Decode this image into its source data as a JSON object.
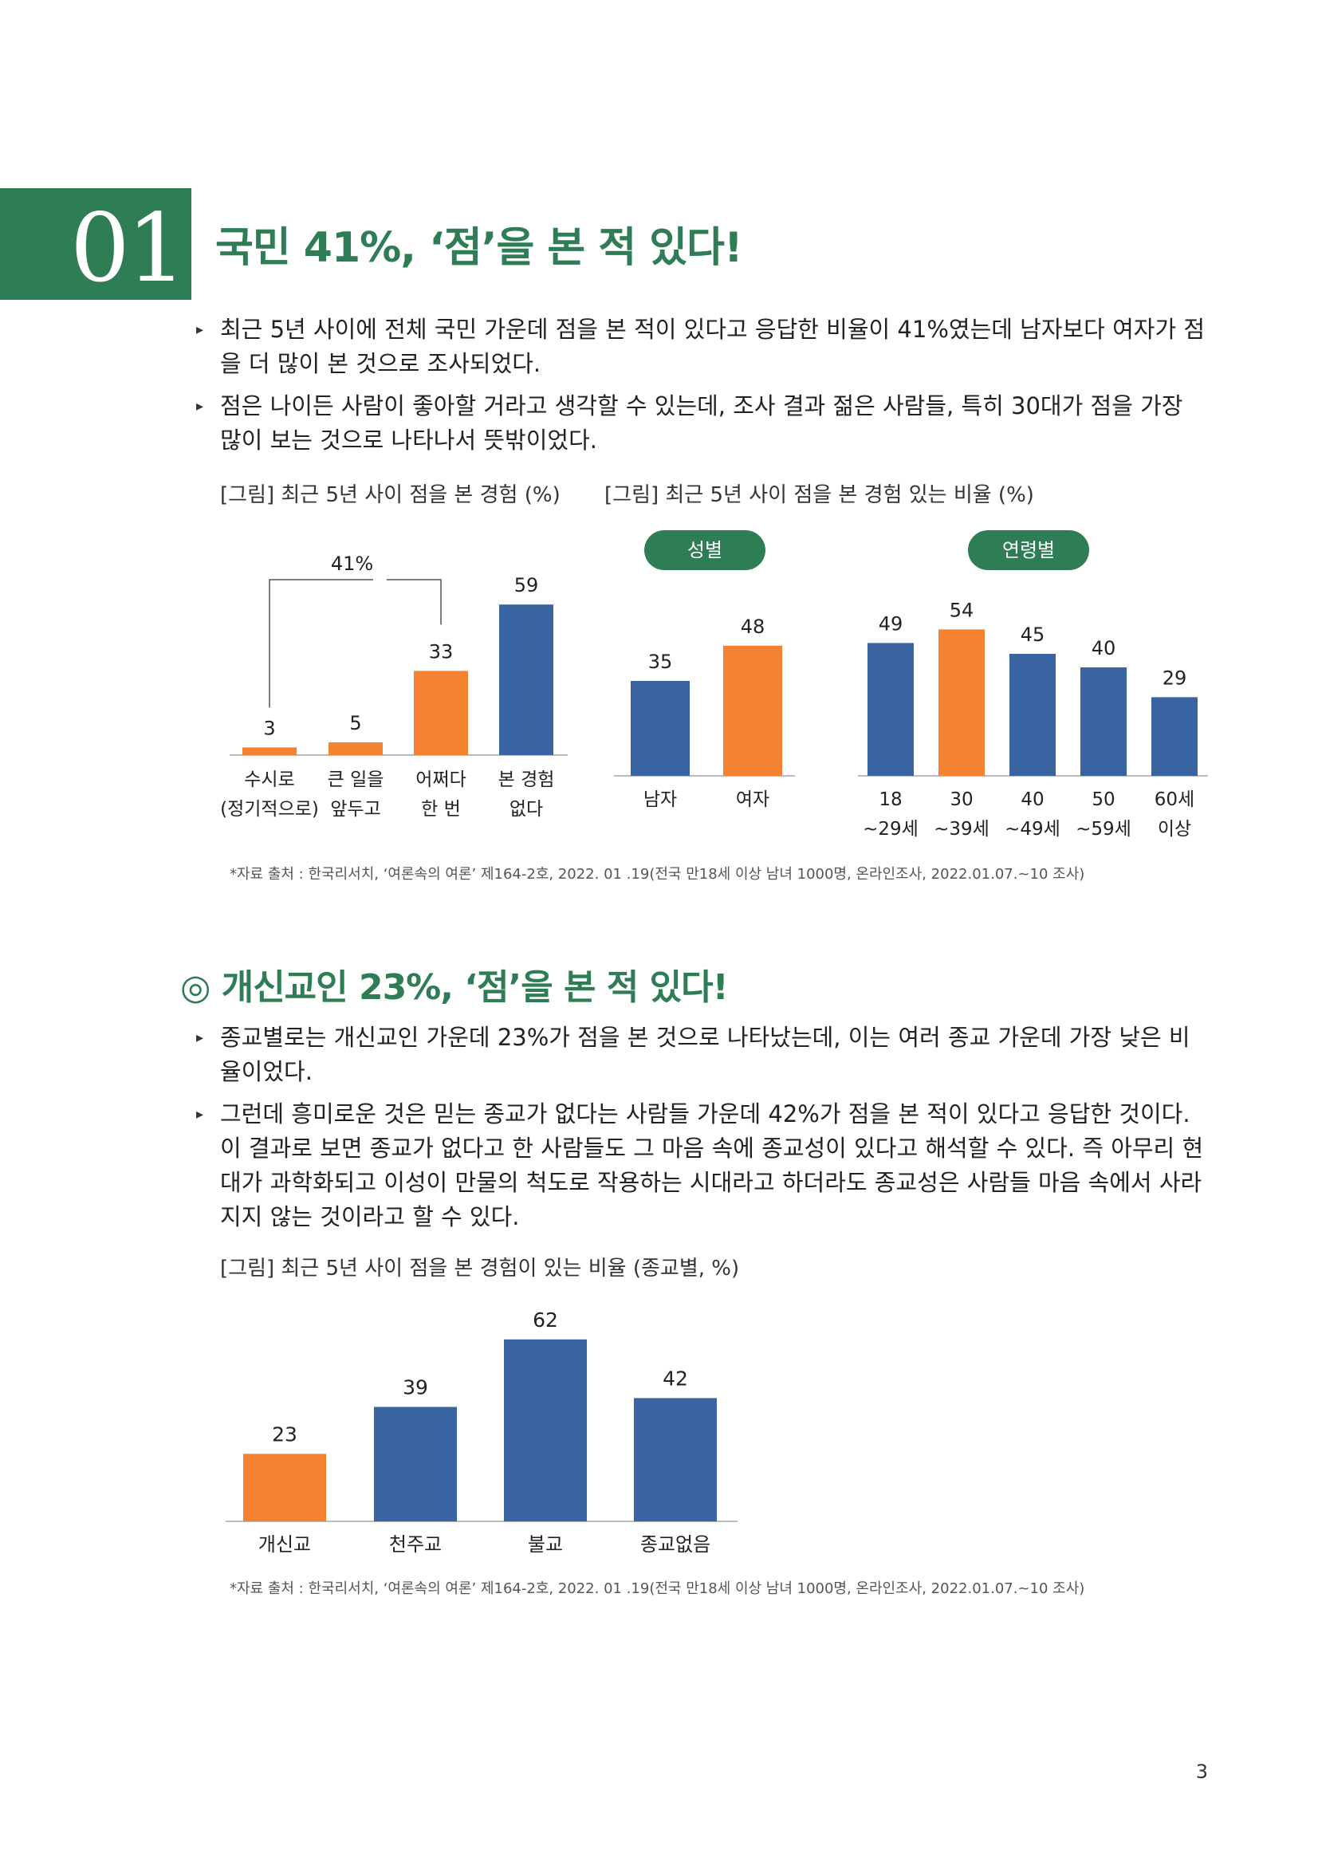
{
  "section1": {
    "number": "01",
    "title": "국민 41%, ‘점’을 본 적 있다!",
    "bullets": [
      "최근 5년 사이에 전체 국민 가운데 점을 본 적이 있다고 응답한 비율이 41%였는데 남자보다 여자가 점을 더 많이 본 것으로 조사되었다.",
      "점은 나이든 사람이 좋아할 거라고 생각할 수 있는데, 조사 결과 젊은 사람들, 특히 30대가 점을 가장 많이 보는 것으로 나타나서 뜻밖이었다."
    ],
    "caption_left": "[그림] 최근 5년 사이 점을 본 경험 (%)",
    "caption_right": "[그림] 최근 5년 사이 점을 본 경험 있는 비율 (%)",
    "pill_gender": "성별",
    "pill_age": "연령별",
    "source": "*자료 출처 : 한국리서치, ‘여론속의 여론’ 제164-2호, 2022. 01 .19(전국 만18세 이상 남녀 1000명, 온라인조사, 2022.01.07.~10 조사)"
  },
  "section2": {
    "title": "◎ 개신교인 23%, ‘점’을 본 적 있다!",
    "bullets": [
      "종교별로는 개신교인 가운데 23%가 점을 본 것으로 나타났는데, 이는 여러 종교 가운데 가장 낮은 비율이었다.",
      "그런데 흥미로운 것은 믿는 종교가 없다는 사람들 가운데 42%가 점을 본 적이 있다고 응답한 것이다. 이 결과로 보면 종교가 없다고 한 사람들도 그 마음 속에 종교성이 있다고 해석할 수 있다. 즉 아무리 현대가 과학화되고 이성이 만물의 척도로 작용하는 시대라고 하더라도 종교성은 사람들 마음 속에서 사라지지 않는 것이라고 할 수 있다."
    ],
    "caption": "[그림] 최근 5년 사이 점을 본 경험이 있는 비율 (종교별, %)",
    "source": "*자료 출처 : 한국리서치, ‘여론속의 여론’ 제164-2호, 2022. 01 .19(전국 만18세 이상 남녀 1000명, 온라인조사, 2022.01.07.~10 조사)"
  },
  "page_number": "3",
  "colors": {
    "green": "#2e7d55",
    "orange": "#f58233",
    "blue": "#3a64a0"
  },
  "chart_data": [
    {
      "type": "bar",
      "title": "[그림] 최근 5년 사이 점을 본 경험 (%)",
      "categories": [
        [
          "수시로",
          "(정기적으로)"
        ],
        [
          "큰 일을",
          "앞두고"
        ],
        [
          "어쩌다",
          "한 번"
        ],
        [
          "본 경험",
          "없다"
        ]
      ],
      "values": [
        3,
        5,
        33,
        59
      ],
      "highlight": [
        true,
        true,
        true,
        false
      ],
      "bracket_label": "41%",
      "ylim": [
        0,
        60
      ]
    },
    {
      "type": "bar",
      "title": "[그림] 최근 5년 사이 점을 본 경험 있는 비율 (%)",
      "group": "성별",
      "categories": [
        [
          "남자"
        ],
        [
          "여자"
        ]
      ],
      "values": [
        35,
        48
      ],
      "highlight": [
        false,
        true
      ],
      "ylim": [
        0,
        60
      ]
    },
    {
      "type": "bar",
      "group": "연령별",
      "categories": [
        [
          "18",
          "~29세"
        ],
        [
          "30",
          "~39세"
        ],
        [
          "40",
          "~49세"
        ],
        [
          "50",
          "~59세"
        ],
        [
          "60세",
          "이상"
        ]
      ],
      "values": [
        49,
        54,
        45,
        40,
        29
      ],
      "highlight": [
        false,
        true,
        false,
        false,
        false
      ],
      "ylim": [
        0,
        60
      ]
    },
    {
      "type": "bar",
      "title": "[그림] 최근 5년 사이 점을 본 경험이 있는 비율 (종교별, %)",
      "categories": [
        [
          "개신교"
        ],
        [
          "천주교"
        ],
        [
          "불교"
        ],
        [
          "종교없음"
        ]
      ],
      "values": [
        23,
        39,
        62,
        42
      ],
      "highlight": [
        true,
        false,
        false,
        false
      ],
      "ylim": [
        0,
        70
      ]
    }
  ]
}
